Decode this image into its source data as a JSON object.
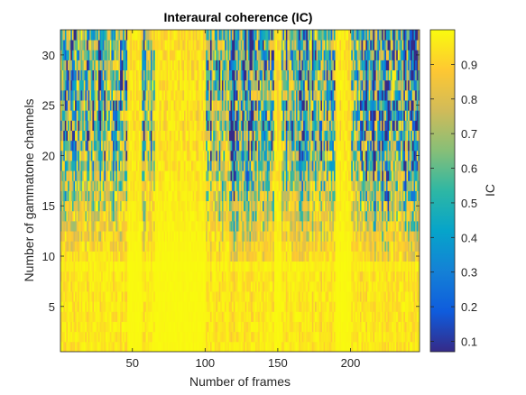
{
  "chart_data": {
    "type": "heatmap",
    "title": "Interaural coherence (IC)",
    "xlabel": "Number of frames",
    "ylabel": "Number of gammatone channels",
    "colorbar_label": "IC",
    "colormap": "parula",
    "x_range": [
      1,
      247
    ],
    "y_range": [
      1,
      32
    ],
    "xlim": [
      0.5,
      247.5
    ],
    "ylim": [
      0.5,
      32.5
    ],
    "clim": [
      0.07,
      1.0
    ],
    "x_ticks": [
      50,
      100,
      150,
      200
    ],
    "y_ticks": [
      5,
      10,
      15,
      20,
      25,
      30
    ],
    "colorbar_ticks": [
      0.1,
      0.2,
      0.3,
      0.4,
      0.5,
      0.6,
      0.7,
      0.8,
      0.9
    ],
    "high_coherence_frame_bands": [
      [
        47,
        56
      ],
      [
        66,
        100
      ],
      [
        148,
        152
      ],
      [
        190,
        200
      ]
    ],
    "low_coherence_frame_bands": [
      [
        118,
        135
      ],
      [
        140,
        146
      ],
      [
        160,
        170
      ],
      [
        210,
        226
      ],
      [
        236,
        247
      ]
    ],
    "description_note": "Values are near 1 in low channels (1-8) and in the vertical bands; higher channels (12-32) fluctuate between ~0.15 and 1."
  }
}
